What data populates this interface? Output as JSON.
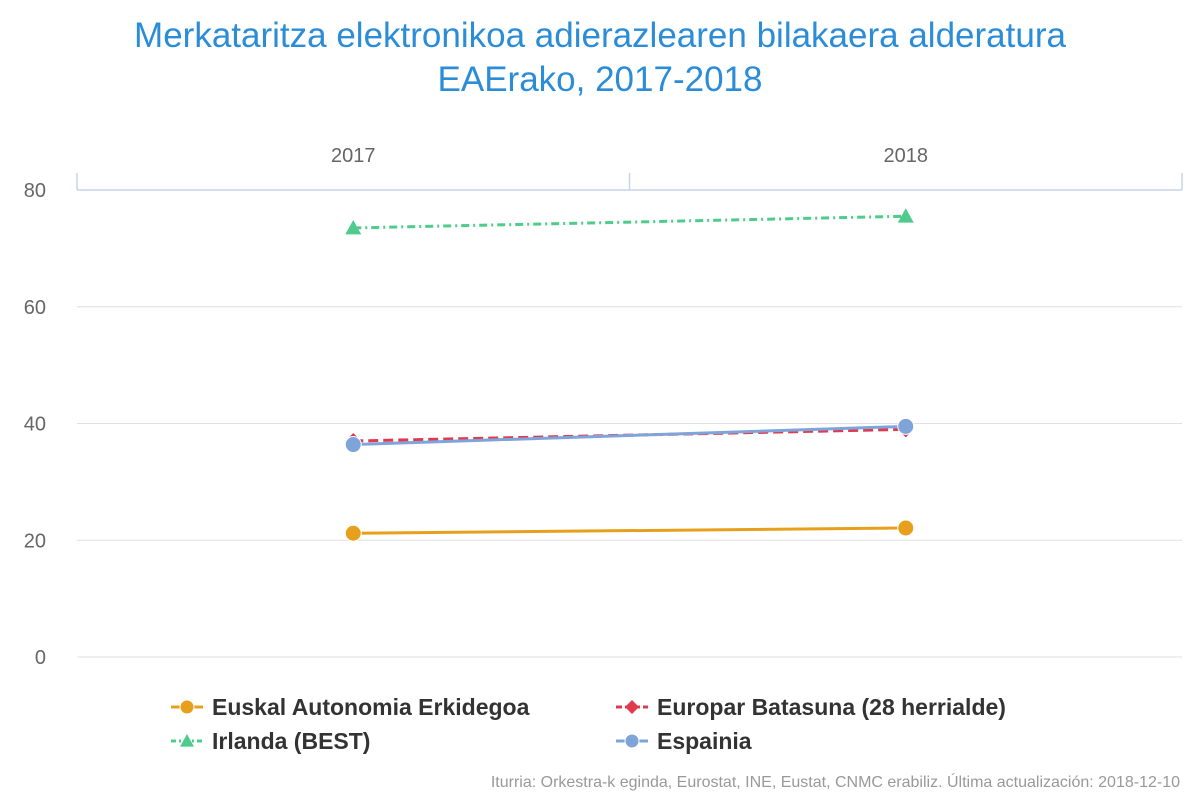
{
  "title_lines": [
    "Merkataritza elektronikoa adierazlearen bilakaera alderatura",
    "EAErako, 2017-2018"
  ],
  "source": "Iturria: Orkestra-k eginda, Eurostat, INE, Eustat, CNMC erabiliz. Última actualización: 2018-12-10",
  "colors": {
    "title": "#2b8cd8",
    "grid": "#e0e0e0",
    "axis": "#c6d4ea",
    "tick_label": "#666666"
  },
  "chart_data": {
    "type": "line",
    "categories": [
      "2017",
      "2018"
    ],
    "ylim": [
      0,
      80
    ],
    "yticks": [
      0,
      20,
      40,
      60,
      80
    ],
    "x_axis_position": "top",
    "legend_placement": "bottom",
    "grid": true,
    "series": [
      {
        "name": "Euskal Autonomia Erkidegoa",
        "values": [
          21.2,
          22.1
        ],
        "color": "#e8a01c",
        "marker": "circle",
        "dash": "solid"
      },
      {
        "name": "Europar Batasuna (28 herrialde)",
        "values": [
          37.0,
          39.0
        ],
        "color": "#e03a4e",
        "marker": "diamond",
        "dash": "dashed"
      },
      {
        "name": "Irlanda (BEST)",
        "values": [
          73.5,
          75.5
        ],
        "color": "#4fcc8c",
        "marker": "triangle",
        "dash": "dashdot"
      },
      {
        "name": "Espainia",
        "values": [
          36.4,
          39.5
        ],
        "color": "#7fa4da",
        "marker": "circle",
        "dash": "solid"
      }
    ]
  }
}
